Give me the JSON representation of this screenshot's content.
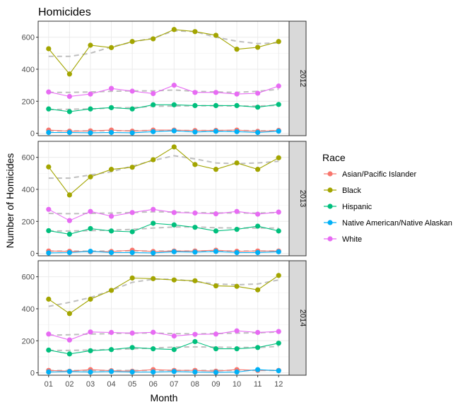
{
  "chart_data": {
    "type": "line",
    "title": "Homicides",
    "xlabel": "Month",
    "ylabel": "Number of Homicides",
    "categories": [
      "01",
      "02",
      "03",
      "04",
      "05",
      "06",
      "07",
      "08",
      "09",
      "10",
      "11",
      "12"
    ],
    "ylim": [
      -15,
      700
    ],
    "yticks": [
      0,
      200,
      400,
      600
    ],
    "legend": {
      "title": "Race",
      "placement": "right"
    },
    "series_meta": [
      {
        "name": "Asian/Pacific Islander",
        "color": "#F8766D"
      },
      {
        "name": "Black",
        "color": "#A3A500"
      },
      {
        "name": "Hispanic",
        "color": "#00BF7D"
      },
      {
        "name": "Native American/Native Alaskan",
        "color": "#00B0F6"
      },
      {
        "name": "White",
        "color": "#E76BF3"
      }
    ],
    "trend_color": "#bfbfbf",
    "panels": [
      {
        "label": "2012",
        "series": [
          {
            "name": "Asian/Pacific Islander",
            "values": [
              20,
              13,
              15,
              20,
              13,
              20,
              20,
              17,
              18,
              20,
              12,
              18
            ]
          },
          {
            "name": "Black",
            "values": [
              528,
              370,
              550,
              535,
              573,
              590,
              648,
              635,
              612,
              525,
              537,
              573
            ]
          },
          {
            "name": "Hispanic",
            "values": [
              152,
              135,
              152,
              160,
              152,
              178,
              178,
              173,
              173,
              173,
              163,
              180
            ]
          },
          {
            "name": "Native American/Native Alaskan",
            "values": [
              5,
              5,
              3,
              5,
              3,
              10,
              15,
              8,
              12,
              10,
              5,
              13
            ]
          },
          {
            "name": "White",
            "values": [
              258,
              230,
              245,
              280,
              263,
              248,
              300,
              255,
              255,
              245,
              250,
              295
            ]
          }
        ],
        "trends": [
          {
            "name": "Black",
            "values": [
              480,
              480,
              500,
              540,
              570,
              595,
              640,
              635,
              600,
              575,
              560,
              565
            ]
          },
          {
            "name": "White",
            "values": [
              255,
              255,
              258,
              262,
              265,
              265,
              270,
              262,
              258,
              255,
              262,
              275
            ]
          },
          {
            "name": "Hispanic",
            "values": [
              148,
              150,
              152,
              158,
              160,
              168,
              170,
              172,
              172,
              170,
              170,
              175
            ]
          },
          {
            "name": "Asian/Pacific Islander",
            "values": [
              15,
              15,
              15,
              16,
              16,
              17,
              17,
              17,
              17,
              17,
              16,
              16
            ]
          }
        ]
      },
      {
        "label": "2013",
        "series": [
          {
            "name": "Asian/Pacific Islander",
            "values": [
              15,
              13,
              10,
              12,
              20,
              12,
              15,
              15,
              20,
              13,
              15,
              15
            ]
          },
          {
            "name": "Black",
            "values": [
              540,
              365,
              478,
              525,
              538,
              585,
              665,
              555,
              525,
              565,
              525,
              597
            ]
          },
          {
            "name": "Hispanic",
            "values": [
              142,
              120,
              155,
              140,
              135,
              188,
              178,
              163,
              140,
              150,
              170,
              140
            ]
          },
          {
            "name": "Native American/Native Alaskan",
            "values": [
              3,
              5,
              13,
              5,
              5,
              3,
              10,
              8,
              12,
              5,
              5,
              10
            ]
          },
          {
            "name": "White",
            "values": [
              275,
              205,
              262,
              232,
              255,
              275,
              255,
              252,
              247,
              262,
              245,
              258
            ]
          }
        ],
        "trends": [
          {
            "name": "Black",
            "values": [
              470,
              470,
              490,
              510,
              545,
              580,
              610,
              590,
              565,
              560,
              565,
              575
            ]
          },
          {
            "name": "White",
            "values": [
              250,
              248,
              250,
              252,
              255,
              260,
              258,
              255,
              253,
              252,
              252,
              255
            ]
          },
          {
            "name": "Hispanic",
            "values": [
              140,
              140,
              142,
              145,
              150,
              158,
              165,
              165,
              160,
              158,
              158,
              158
            ]
          },
          {
            "name": "Asian/Pacific Islander",
            "values": [
              14,
              14,
              14,
              15,
              15,
              15,
              15,
              15,
              15,
              15,
              15,
              15
            ]
          }
        ]
      },
      {
        "label": "2014",
        "series": [
          {
            "name": "Asian/Pacific Islander",
            "values": [
              15,
              10,
              20,
              13,
              10,
              20,
              15,
              15,
              10,
              20,
              15,
              15
            ]
          },
          {
            "name": "Black",
            "values": [
              460,
              370,
              460,
              515,
              592,
              588,
              580,
              575,
              543,
              540,
              518,
              608
            ]
          },
          {
            "name": "Hispanic",
            "values": [
              142,
              118,
              138,
              145,
              158,
              150,
              145,
              195,
              150,
              150,
              158,
              185
            ]
          },
          {
            "name": "Native American/Native Alaskan",
            "values": [
              5,
              8,
              5,
              8,
              5,
              5,
              8,
              5,
              3,
              5,
              20,
              13
            ]
          },
          {
            "name": "White",
            "values": [
              242,
              205,
              255,
              252,
              248,
              253,
              230,
              240,
              242,
              262,
              252,
              258
            ]
          }
        ],
        "trends": [
          {
            "name": "Black",
            "values": [
              415,
              440,
              470,
              515,
              565,
              585,
              585,
              570,
              555,
              550,
              555,
              580
            ]
          },
          {
            "name": "White",
            "values": [
              235,
              238,
              242,
              245,
              248,
              248,
              245,
              243,
              245,
              248,
              250,
              255
            ]
          },
          {
            "name": "Hispanic",
            "values": [
              140,
              140,
              142,
              145,
              150,
              155,
              160,
              162,
              160,
              158,
              158,
              165
            ]
          },
          {
            "name": "Asian/Pacific Islander",
            "values": [
              14,
              14,
              14,
              15,
              15,
              15,
              15,
              15,
              15,
              15,
              15,
              15
            ]
          }
        ]
      }
    ]
  }
}
